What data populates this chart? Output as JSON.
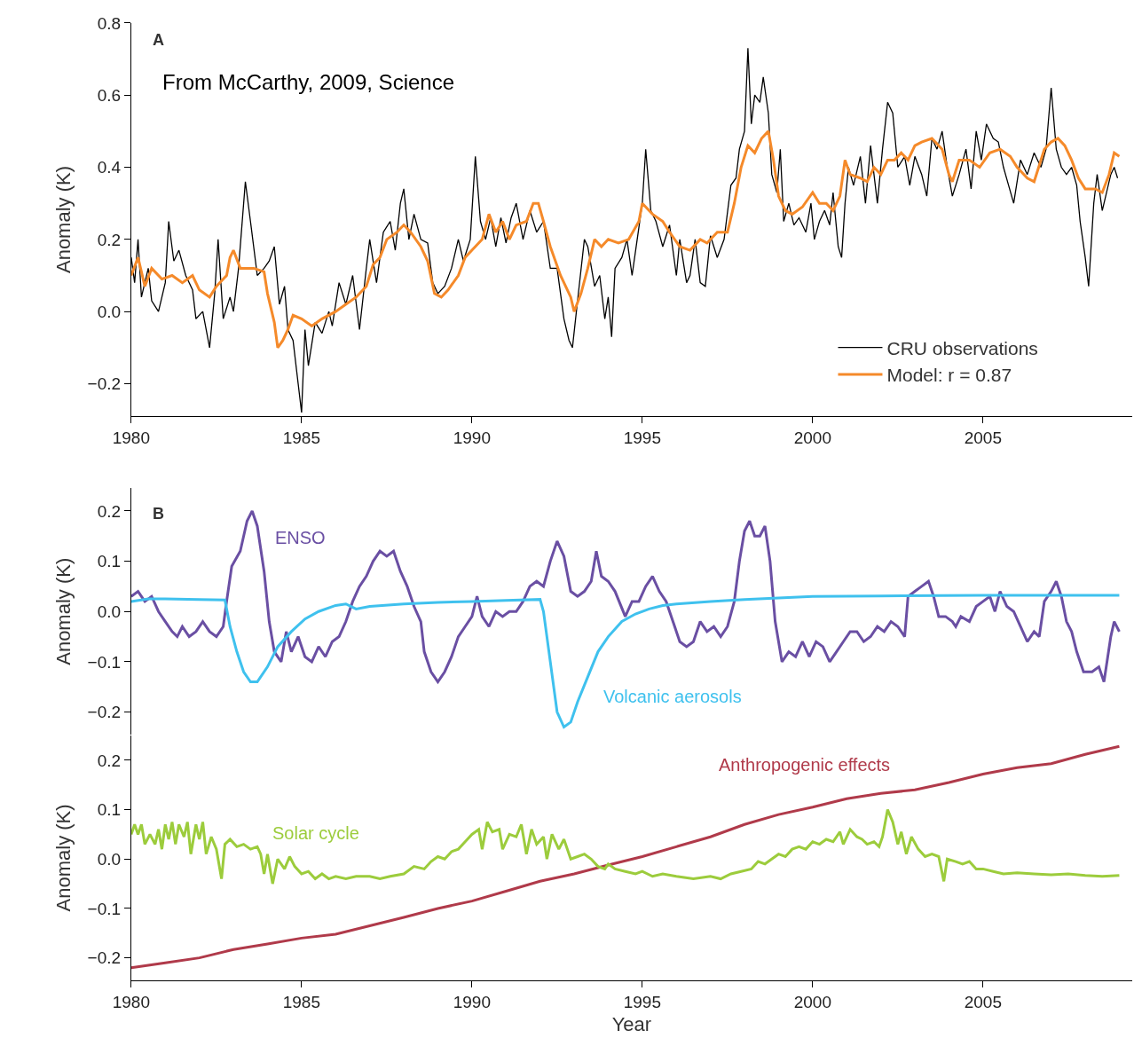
{
  "chart_data": [
    {
      "type": "line",
      "ylabel": "Anomaly (K)",
      "annotations": [
        "A",
        "From McCarthy, 2009, Science"
      ],
      "legend": "bottom right",
      "xlim": [
        1980,
        2009.38
      ],
      "xticks": [
        1980,
        1985,
        1990,
        1995,
        2000,
        2005
      ],
      "ylim": [
        -0.29,
        0.8
      ],
      "yticks": [
        {
          "value": -0.2,
          "label": "−0.2"
        },
        {
          "value": 0,
          "label": "0.0"
        },
        0.2,
        0.4,
        0.6,
        0.8
      ],
      "series": [
        {
          "name": "CRU observations",
          "color": "#000000",
          "x": [
            1980.0,
            1980.1,
            1980.2,
            1980.3,
            1980.5,
            1980.6,
            1980.8,
            1981.0,
            1981.1,
            1981.25,
            1981.4,
            1981.6,
            1981.8,
            1981.9,
            1982.1,
            1982.3,
            1982.45,
            1982.55,
            1982.7,
            1982.9,
            1983.0,
            1983.15,
            1983.35,
            1983.5,
            1983.7,
            1983.9,
            1984.05,
            1984.2,
            1984.35,
            1984.5,
            1984.6,
            1984.75,
            1984.9,
            1985.0,
            1985.1,
            1985.2,
            1985.4,
            1985.6,
            1985.8,
            1985.9,
            1986.1,
            1986.3,
            1986.5,
            1986.7,
            1986.9,
            1987.0,
            1987.2,
            1987.4,
            1987.6,
            1987.75,
            1987.9,
            1988.0,
            1988.15,
            1988.3,
            1988.5,
            1988.7,
            1988.85,
            1989.0,
            1989.2,
            1989.4,
            1989.6,
            1989.75,
            1989.95,
            1990.1,
            1990.25,
            1990.4,
            1990.55,
            1990.7,
            1990.85,
            1991.0,
            1991.15,
            1991.3,
            1991.5,
            1991.7,
            1991.9,
            1992.1,
            1992.3,
            1992.5,
            1992.7,
            1992.85,
            1992.95,
            1993.1,
            1993.3,
            1993.4,
            1993.6,
            1993.75,
            1993.9,
            1994.0,
            1994.1,
            1994.2,
            1994.4,
            1994.55,
            1994.7,
            1994.85,
            1995.0,
            1995.1,
            1995.25,
            1995.4,
            1995.6,
            1995.8,
            1996.0,
            1996.1,
            1996.3,
            1996.4,
            1996.55,
            1996.7,
            1996.85,
            1997.0,
            1997.2,
            1997.4,
            1997.6,
            1997.75,
            1997.85,
            1998.0,
            1998.1,
            1998.2,
            1998.3,
            1998.45,
            1998.55,
            1998.7,
            1998.8,
            1998.95,
            1999.05,
            1999.15,
            1999.3,
            1999.45,
            1999.6,
            1999.8,
            1999.95,
            2000.05,
            2000.2,
            2000.35,
            2000.5,
            2000.6,
            2000.75,
            2000.85,
            2000.95,
            2001.05,
            2001.2,
            2001.4,
            2001.55,
            2001.7,
            2001.9,
            2002.05,
            2002.2,
            2002.35,
            2002.5,
            2002.7,
            2002.85,
            2003.0,
            2003.2,
            2003.35,
            2003.5,
            2003.65,
            2003.8,
            2003.95,
            2004.1,
            2004.3,
            2004.5,
            2004.65,
            2004.8,
            2004.95,
            2005.1,
            2005.3,
            2005.45,
            2005.6,
            2005.75,
            2005.9,
            2006.1,
            2006.3,
            2006.5,
            2006.7,
            2006.85,
            2007.0,
            2007.15,
            2007.3,
            2007.45,
            2007.6,
            2007.75,
            2007.85,
            2008.0,
            2008.1,
            2008.25,
            2008.35,
            2008.5,
            2008.6,
            2008.75,
            2008.85,
            2008.95
          ],
          "values": [
            0.15,
            0.08,
            0.2,
            0.04,
            0.12,
            0.03,
            0.0,
            0.08,
            0.25,
            0.14,
            0.17,
            0.1,
            0.06,
            -0.02,
            0.0,
            -0.1,
            0.05,
            0.2,
            -0.02,
            0.04,
            0.0,
            0.12,
            0.36,
            0.25,
            0.1,
            0.12,
            0.14,
            0.18,
            0.02,
            0.07,
            -0.05,
            -0.08,
            -0.2,
            -0.28,
            -0.05,
            -0.15,
            -0.03,
            -0.06,
            0.0,
            -0.04,
            0.08,
            0.02,
            0.1,
            -0.05,
            0.12,
            0.2,
            0.08,
            0.22,
            0.25,
            0.17,
            0.3,
            0.34,
            0.2,
            0.27,
            0.2,
            0.19,
            0.08,
            0.05,
            0.07,
            0.12,
            0.2,
            0.14,
            0.2,
            0.43,
            0.25,
            0.2,
            0.26,
            0.18,
            0.26,
            0.19,
            0.26,
            0.3,
            0.2,
            0.28,
            0.22,
            0.25,
            0.12,
            0.12,
            -0.02,
            -0.08,
            -0.1,
            0.03,
            0.2,
            0.18,
            0.07,
            0.1,
            -0.02,
            0.04,
            -0.07,
            0.12,
            0.15,
            0.2,
            0.1,
            0.2,
            0.3,
            0.45,
            0.28,
            0.25,
            0.18,
            0.24,
            0.1,
            0.2,
            0.08,
            0.1,
            0.2,
            0.08,
            0.07,
            0.21,
            0.15,
            0.2,
            0.35,
            0.37,
            0.45,
            0.5,
            0.73,
            0.52,
            0.6,
            0.58,
            0.65,
            0.55,
            0.38,
            0.33,
            0.45,
            0.25,
            0.3,
            0.24,
            0.26,
            0.22,
            0.3,
            0.2,
            0.25,
            0.28,
            0.24,
            0.33,
            0.18,
            0.15,
            0.3,
            0.4,
            0.35,
            0.43,
            0.3,
            0.46,
            0.3,
            0.45,
            0.58,
            0.55,
            0.4,
            0.43,
            0.35,
            0.43,
            0.38,
            0.32,
            0.48,
            0.45,
            0.5,
            0.4,
            0.32,
            0.38,
            0.45,
            0.34,
            0.5,
            0.42,
            0.52,
            0.48,
            0.47,
            0.4,
            0.35,
            0.3,
            0.42,
            0.38,
            0.44,
            0.4,
            0.45,
            0.62,
            0.45,
            0.4,
            0.38,
            0.4,
            0.35,
            0.25,
            0.15,
            0.07,
            0.3,
            0.38,
            0.28,
            0.32,
            0.38,
            0.4,
            0.37
          ]
        },
        {
          "name": "Model: r = 0.87",
          "color": "#f58a2a",
          "x": [
            1980.0,
            1980.2,
            1980.4,
            1980.6,
            1980.9,
            1981.2,
            1981.5,
            1981.8,
            1982.0,
            1982.3,
            1982.5,
            1982.8,
            1982.9,
            1983.0,
            1983.2,
            1983.6,
            1983.9,
            1984.0,
            1984.2,
            1984.3,
            1984.45,
            1984.6,
            1984.75,
            1985.0,
            1985.3,
            1985.6,
            1986.0,
            1986.3,
            1986.6,
            1986.9,
            1987.1,
            1987.3,
            1987.5,
            1987.8,
            1988.0,
            1988.2,
            1988.5,
            1988.7,
            1988.9,
            1989.1,
            1989.3,
            1989.6,
            1989.8,
            1990.0,
            1990.3,
            1990.5,
            1990.7,
            1990.9,
            1991.1,
            1991.3,
            1991.6,
            1991.8,
            1991.95,
            1992.1,
            1992.3,
            1992.6,
            1992.9,
            1993.0,
            1993.2,
            1993.4,
            1993.6,
            1993.8,
            1994.0,
            1994.3,
            1994.6,
            1994.9,
            1995.0,
            1995.3,
            1995.6,
            1995.8,
            1996.1,
            1996.4,
            1996.7,
            1996.9,
            1997.2,
            1997.5,
            1997.7,
            1997.9,
            1998.1,
            1998.3,
            1998.5,
            1998.7,
            1998.85,
            1999.0,
            1999.2,
            1999.4,
            1999.7,
            2000.0,
            2000.2,
            2000.4,
            2000.6,
            2000.8,
            2000.95,
            2001.1,
            2001.4,
            2001.6,
            2001.8,
            2002.0,
            2002.2,
            2002.4,
            2002.6,
            2002.8,
            2003.0,
            2003.2,
            2003.5,
            2003.8,
            2004.0,
            2004.1,
            2004.3,
            2004.6,
            2004.9,
            2005.2,
            2005.5,
            2005.8,
            2006.0,
            2006.3,
            2006.5,
            2006.8,
            2007.0,
            2007.2,
            2007.4,
            2007.6,
            2007.8,
            2008.0,
            2008.3,
            2008.5,
            2008.7,
            2008.85,
            2009.0
          ],
          "values": [
            0.1,
            0.15,
            0.07,
            0.12,
            0.09,
            0.1,
            0.08,
            0.1,
            0.06,
            0.04,
            0.07,
            0.1,
            0.15,
            0.17,
            0.12,
            0.12,
            0.11,
            0.05,
            -0.03,
            -0.1,
            -0.08,
            -0.05,
            -0.01,
            -0.02,
            -0.04,
            -0.02,
            0.0,
            0.02,
            0.04,
            0.07,
            0.13,
            0.15,
            0.2,
            0.22,
            0.24,
            0.22,
            0.18,
            0.14,
            0.05,
            0.04,
            0.06,
            0.1,
            0.15,
            0.17,
            0.2,
            0.27,
            0.22,
            0.25,
            0.2,
            0.24,
            0.25,
            0.3,
            0.3,
            0.25,
            0.18,
            0.1,
            0.04,
            0.0,
            0.05,
            0.12,
            0.2,
            0.18,
            0.2,
            0.19,
            0.2,
            0.25,
            0.3,
            0.27,
            0.25,
            0.22,
            0.18,
            0.17,
            0.2,
            0.19,
            0.22,
            0.22,
            0.3,
            0.4,
            0.46,
            0.44,
            0.48,
            0.5,
            0.42,
            0.32,
            0.28,
            0.27,
            0.29,
            0.33,
            0.3,
            0.3,
            0.28,
            0.32,
            0.42,
            0.38,
            0.37,
            0.36,
            0.4,
            0.38,
            0.42,
            0.42,
            0.44,
            0.42,
            0.46,
            0.47,
            0.48,
            0.45,
            0.38,
            0.36,
            0.42,
            0.42,
            0.4,
            0.44,
            0.45,
            0.43,
            0.4,
            0.37,
            0.36,
            0.45,
            0.47,
            0.48,
            0.46,
            0.42,
            0.37,
            0.34,
            0.34,
            0.33,
            0.38,
            0.44,
            0.43
          ]
        }
      ]
    },
    {
      "type": "line",
      "ylabel": "Anomaly (K)",
      "annotations": [
        "B"
      ],
      "tick_labels": "y",
      "xlim": [
        1980,
        2009.38
      ],
      "ylim": [
        -0.245,
        0.245
      ],
      "yticks": [
        {
          "value": -0.2,
          "label": "−0.2"
        },
        {
          "value": -0.1,
          "label": "−0.1"
        },
        {
          "value": 0,
          "label": "0.0"
        },
        0.1,
        0.2
      ],
      "series": [
        {
          "name": "ENSO",
          "color": "#6a4fa3",
          "x": [
            1980.0,
            1980.2,
            1980.4,
            1980.6,
            1980.8,
            1981.0,
            1981.2,
            1981.35,
            1981.5,
            1981.7,
            1981.9,
            1982.1,
            1982.3,
            1982.5,
            1982.7,
            1982.8,
            1982.95,
            1983.2,
            1983.4,
            1983.55,
            1983.7,
            1983.9,
            1984.05,
            1984.2,
            1984.4,
            1984.55,
            1984.7,
            1984.9,
            1985.1,
            1985.3,
            1985.5,
            1985.7,
            1985.9,
            1986.1,
            1986.3,
            1986.5,
            1986.7,
            1986.9,
            1987.1,
            1987.3,
            1987.5,
            1987.7,
            1987.9,
            1988.1,
            1988.3,
            1988.5,
            1988.6,
            1988.8,
            1989.0,
            1989.2,
            1989.4,
            1989.6,
            1989.8,
            1990.0,
            1990.15,
            1990.3,
            1990.5,
            1990.7,
            1990.9,
            1991.1,
            1991.3,
            1991.5,
            1991.7,
            1991.9,
            1992.1,
            1992.3,
            1992.5,
            1992.7,
            1992.9,
            1993.1,
            1993.3,
            1993.5,
            1993.65,
            1993.8,
            1994.0,
            1994.2,
            1994.5,
            1994.7,
            1994.9,
            1995.1,
            1995.3,
            1995.5,
            1995.7,
            1995.9,
            1996.1,
            1996.3,
            1996.5,
            1996.7,
            1996.9,
            1997.1,
            1997.3,
            1997.5,
            1997.7,
            1997.85,
            1998.0,
            1998.15,
            1998.3,
            1998.45,
            1998.6,
            1998.75,
            1998.9,
            1999.1,
            1999.3,
            1999.5,
            1999.7,
            1999.9,
            2000.1,
            2000.3,
            2000.5,
            2000.7,
            2000.9,
            2001.1,
            2001.3,
            2001.5,
            2001.7,
            2001.9,
            2002.1,
            2002.3,
            2002.5,
            2002.7,
            2002.8,
            2003.0,
            2003.2,
            2003.4,
            2003.55,
            2003.7,
            2003.9,
            2004.1,
            2004.2,
            2004.35,
            2004.6,
            2004.8,
            2005.0,
            2005.2,
            2005.35,
            2005.5,
            2005.7,
            2005.9,
            2006.1,
            2006.3,
            2006.5,
            2006.65,
            2006.8,
            2007.0,
            2007.15,
            2007.3,
            2007.45,
            2007.6,
            2007.75,
            2007.95,
            2008.2,
            2008.4,
            2008.55,
            2008.75,
            2008.85,
            2009.0
          ],
          "values": [
            0.03,
            0.04,
            0.02,
            0.03,
            0.0,
            -0.02,
            -0.04,
            -0.05,
            -0.03,
            -0.05,
            -0.04,
            -0.02,
            -0.04,
            -0.05,
            -0.03,
            0.02,
            0.09,
            0.12,
            0.18,
            0.2,
            0.17,
            0.08,
            -0.02,
            -0.08,
            -0.1,
            -0.04,
            -0.08,
            -0.05,
            -0.09,
            -0.1,
            -0.07,
            -0.09,
            -0.06,
            -0.05,
            -0.02,
            0.02,
            0.05,
            0.07,
            0.1,
            0.12,
            0.11,
            0.12,
            0.08,
            0.05,
            0.01,
            -0.02,
            -0.08,
            -0.12,
            -0.14,
            -0.12,
            -0.09,
            -0.05,
            -0.03,
            -0.01,
            0.03,
            -0.01,
            -0.03,
            0.0,
            -0.01,
            0.0,
            0.0,
            0.02,
            0.05,
            0.06,
            0.05,
            0.1,
            0.14,
            0.11,
            0.04,
            0.03,
            0.04,
            0.06,
            0.12,
            0.07,
            0.06,
            0.04,
            -0.01,
            0.02,
            0.02,
            0.05,
            0.07,
            0.04,
            0.02,
            -0.02,
            -0.06,
            -0.07,
            -0.06,
            -0.02,
            -0.04,
            -0.03,
            -0.05,
            -0.03,
            0.02,
            0.1,
            0.16,
            0.18,
            0.15,
            0.15,
            0.17,
            0.1,
            -0.02,
            -0.1,
            -0.08,
            -0.09,
            -0.06,
            -0.09,
            -0.06,
            -0.07,
            -0.1,
            -0.08,
            -0.06,
            -0.04,
            -0.04,
            -0.06,
            -0.05,
            -0.03,
            -0.04,
            -0.02,
            -0.03,
            -0.05,
            0.03,
            0.04,
            0.05,
            0.06,
            0.03,
            -0.01,
            -0.01,
            -0.02,
            -0.03,
            -0.01,
            -0.02,
            0.01,
            0.02,
            0.03,
            0.0,
            0.04,
            0.01,
            0.0,
            -0.03,
            -0.06,
            -0.04,
            -0.05,
            0.02,
            0.04,
            0.06,
            0.03,
            -0.02,
            -0.04,
            -0.08,
            -0.12,
            -0.12,
            -0.11,
            -0.14,
            -0.05,
            -0.02,
            -0.04
          ]
        },
        {
          "name": "Volcanic aerosols",
          "color": "#3fc1ee",
          "x": [
            1980.0,
            1980.5,
            1981.0,
            1982.0,
            1982.75,
            1982.9,
            1983.1,
            1983.3,
            1983.5,
            1983.7,
            1984.0,
            1984.3,
            1984.7,
            1985.1,
            1985.5,
            1986.0,
            1986.3,
            1986.6,
            1987.0,
            1988.0,
            1989.0,
            1990.0,
            1991.0,
            1992.0,
            1992.1,
            1992.3,
            1992.5,
            1992.7,
            1992.9,
            1993.1,
            1993.4,
            1993.7,
            1994.0,
            1994.4,
            1994.8,
            1995.2,
            1995.6,
            1996.0,
            1997.0,
            1998.0,
            1999.0,
            2000.0,
            2002.0,
            2005.0,
            2009.0
          ],
          "values": [
            0.02,
            0.025,
            0.025,
            0.024,
            0.023,
            -0.03,
            -0.08,
            -0.12,
            -0.14,
            -0.14,
            -0.11,
            -0.07,
            -0.04,
            -0.015,
            0.0,
            0.012,
            0.015,
            0.005,
            0.01,
            0.015,
            0.018,
            0.02,
            0.022,
            0.024,
            0.0,
            -0.1,
            -0.2,
            -0.23,
            -0.22,
            -0.18,
            -0.13,
            -0.08,
            -0.05,
            -0.02,
            -0.005,
            0.005,
            0.012,
            0.015,
            0.02,
            0.024,
            0.027,
            0.03,
            0.031,
            0.032,
            0.032
          ]
        }
      ]
    },
    {
      "type": "line",
      "xlabel": "Year",
      "ylabel": "Anomaly (K)",
      "xlim": [
        1980,
        2009.38
      ],
      "xticks": [
        1980,
        1985,
        1990,
        1995,
        2000,
        2005
      ],
      "ylim": [
        -0.245,
        0.25
      ],
      "yticks": [
        {
          "value": -0.2,
          "label": "−0.2"
        },
        {
          "value": -0.1,
          "label": "−0.1"
        },
        {
          "value": 0,
          "label": "0.0"
        },
        0.1,
        0.2
      ],
      "series": [
        {
          "name": "Anthropogenic effects",
          "color": "#b03a4a",
          "x": [
            1980,
            1981,
            1982,
            1983,
            1984,
            1985,
            1986,
            1987,
            1988,
            1989,
            1990,
            1991,
            1992,
            1993,
            1994,
            1995,
            1996,
            1997,
            1998,
            1999,
            2000,
            2001,
            2002,
            2003,
            2004,
            2005,
            2006,
            2007,
            2008,
            2009
          ],
          "values": [
            -0.22,
            -0.21,
            -0.2,
            -0.183,
            -0.172,
            -0.16,
            -0.152,
            -0.135,
            -0.118,
            -0.1,
            -0.085,
            -0.065,
            -0.045,
            -0.03,
            -0.012,
            0.005,
            0.025,
            0.045,
            0.07,
            0.09,
            0.105,
            0.122,
            0.133,
            0.14,
            0.155,
            0.172,
            0.185,
            0.193,
            0.212,
            0.228
          ]
        },
        {
          "name": "Solar cycle",
          "color": "#9ccc3c",
          "x": [
            1980.0,
            1980.1,
            1980.2,
            1980.3,
            1980.4,
            1980.55,
            1980.7,
            1980.8,
            1980.9,
            1981.0,
            1981.1,
            1981.2,
            1981.3,
            1981.4,
            1981.55,
            1981.65,
            1981.75,
            1981.9,
            1982.0,
            1982.1,
            1982.2,
            1982.35,
            1982.5,
            1982.65,
            1982.75,
            1982.9,
            1983.1,
            1983.3,
            1983.5,
            1983.7,
            1983.8,
            1983.9,
            1984.0,
            1984.15,
            1984.3,
            1984.5,
            1984.65,
            1984.8,
            1985.0,
            1985.2,
            1985.4,
            1985.6,
            1985.8,
            1986.0,
            1986.3,
            1986.6,
            1987.0,
            1987.3,
            1987.6,
            1988.0,
            1988.3,
            1988.6,
            1988.8,
            1989.0,
            1989.2,
            1989.4,
            1989.6,
            1989.8,
            1990.0,
            1990.2,
            1990.3,
            1990.45,
            1990.6,
            1990.8,
            1990.9,
            1991.1,
            1991.3,
            1991.45,
            1991.6,
            1991.75,
            1991.9,
            1992.1,
            1992.2,
            1992.35,
            1992.55,
            1992.7,
            1992.9,
            1993.1,
            1993.3,
            1993.5,
            1993.7,
            1993.9,
            1994.0,
            1994.2,
            1994.5,
            1994.8,
            1995.0,
            1995.3,
            1995.6,
            1996.0,
            1996.5,
            1997.0,
            1997.3,
            1997.6,
            1997.9,
            1998.2,
            1998.4,
            1998.6,
            1998.8,
            1999.0,
            1999.2,
            1999.4,
            1999.6,
            1999.8,
            2000.0,
            2000.2,
            2000.4,
            2000.6,
            2000.8,
            2000.9,
            2001.1,
            2001.3,
            2001.45,
            2001.6,
            2001.8,
            2001.95,
            2002.05,
            2002.2,
            2002.35,
            2002.5,
            2002.6,
            2002.75,
            2002.9,
            2003.1,
            2003.3,
            2003.5,
            2003.7,
            2003.85,
            2003.95,
            2004.2,
            2004.4,
            2004.6,
            2004.8,
            2005.0,
            2005.3,
            2005.6,
            2006.0,
            2006.5,
            2007.0,
            2007.5,
            2008.0,
            2008.5,
            2009.0
          ],
          "values": [
            0.05,
            0.07,
            0.05,
            0.07,
            0.03,
            0.05,
            0.03,
            0.06,
            0.02,
            0.07,
            0.04,
            0.075,
            0.03,
            0.07,
            0.045,
            0.075,
            0.01,
            0.07,
            0.04,
            0.075,
            0.01,
            0.045,
            0.02,
            -0.04,
            0.03,
            0.04,
            0.025,
            0.03,
            0.02,
            0.025,
            0.01,
            -0.03,
            0.01,
            -0.05,
            0.0,
            -0.02,
            0.005,
            -0.015,
            -0.03,
            -0.025,
            -0.04,
            -0.03,
            -0.04,
            -0.035,
            -0.04,
            -0.035,
            -0.035,
            -0.04,
            -0.035,
            -0.03,
            -0.015,
            -0.02,
            -0.005,
            0.005,
            0.0,
            0.015,
            0.02,
            0.035,
            0.05,
            0.06,
            0.02,
            0.075,
            0.055,
            0.06,
            0.02,
            0.05,
            0.045,
            0.07,
            0.01,
            0.06,
            0.03,
            0.045,
            0.0,
            0.05,
            0.02,
            0.04,
            0.0,
            0.005,
            0.01,
            0.0,
            -0.015,
            -0.02,
            -0.01,
            -0.02,
            -0.025,
            -0.03,
            -0.025,
            -0.035,
            -0.03,
            -0.035,
            -0.04,
            -0.035,
            -0.04,
            -0.03,
            -0.025,
            -0.02,
            -0.005,
            -0.01,
            0.0,
            0.01,
            0.005,
            0.02,
            0.025,
            0.02,
            0.035,
            0.03,
            0.04,
            0.035,
            0.055,
            0.03,
            0.06,
            0.045,
            0.04,
            0.03,
            0.035,
            0.025,
            0.045,
            0.1,
            0.075,
            0.03,
            0.055,
            0.01,
            0.045,
            0.02,
            0.005,
            0.01,
            0.005,
            -0.045,
            0.0,
            -0.005,
            -0.01,
            -0.005,
            -0.02,
            -0.02,
            -0.025,
            -0.03,
            -0.028,
            -0.03,
            -0.032,
            -0.03,
            -0.033,
            -0.035,
            -0.033
          ]
        }
      ]
    }
  ]
}
